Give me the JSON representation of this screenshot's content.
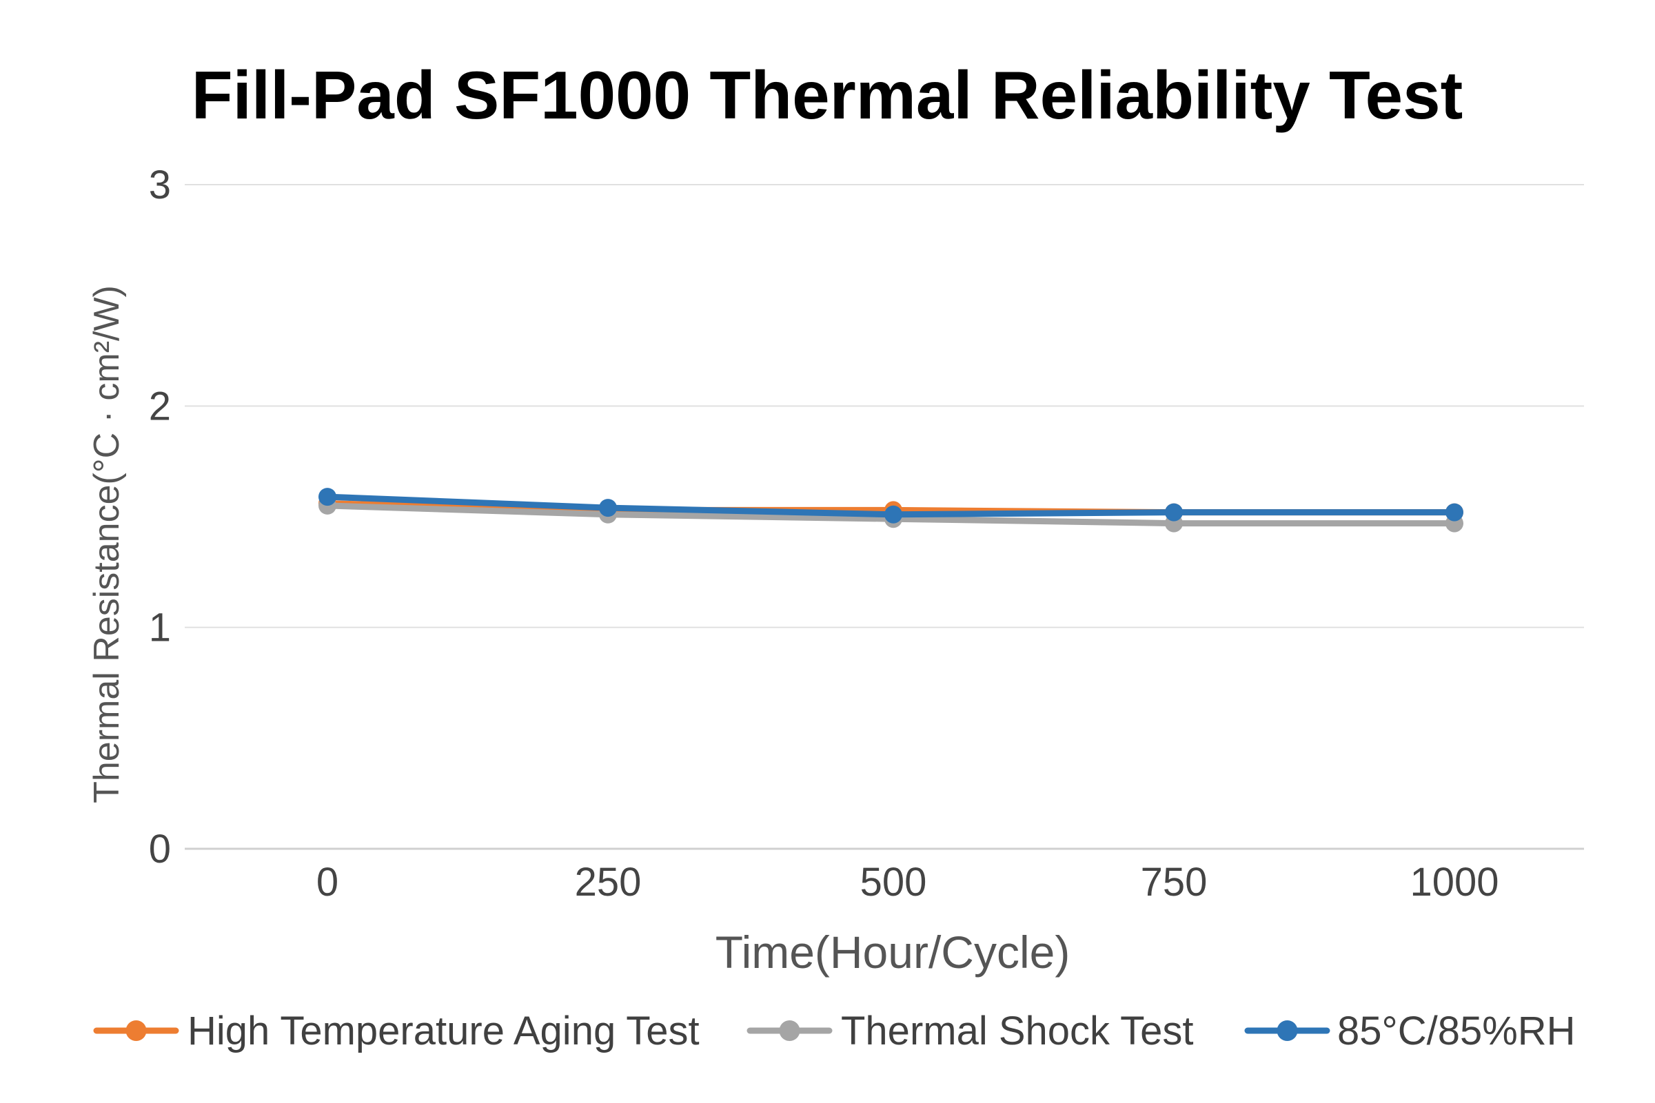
{
  "chart_data": {
    "type": "line",
    "title": "Fill-Pad SF1000  Thermal Reliability Test",
    "xlabel": "Time(Hour/Cycle)",
    "ylabel": "Thermal Resistance(°C · cm²/W)",
    "categories": [
      "0",
      "250",
      "500",
      "750",
      "1000"
    ],
    "yticks": [
      "0",
      "1",
      "2",
      "3"
    ],
    "ylim": [
      0,
      3
    ],
    "grid": true,
    "legend_position": "bottom",
    "series": [
      {
        "name": "High Temperature Aging Test",
        "color": "#ED7D31",
        "values": [
          1.56,
          1.53,
          1.53,
          1.52,
          1.52
        ]
      },
      {
        "name": "Thermal Shock Test",
        "color": "#A5A5A5",
        "values": [
          1.55,
          1.51,
          1.49,
          1.47,
          1.47
        ]
      },
      {
        "name": "85°C/85%RH",
        "color": "#2E75B6",
        "values": [
          1.59,
          1.54,
          1.51,
          1.52,
          1.52
        ]
      }
    ]
  }
}
